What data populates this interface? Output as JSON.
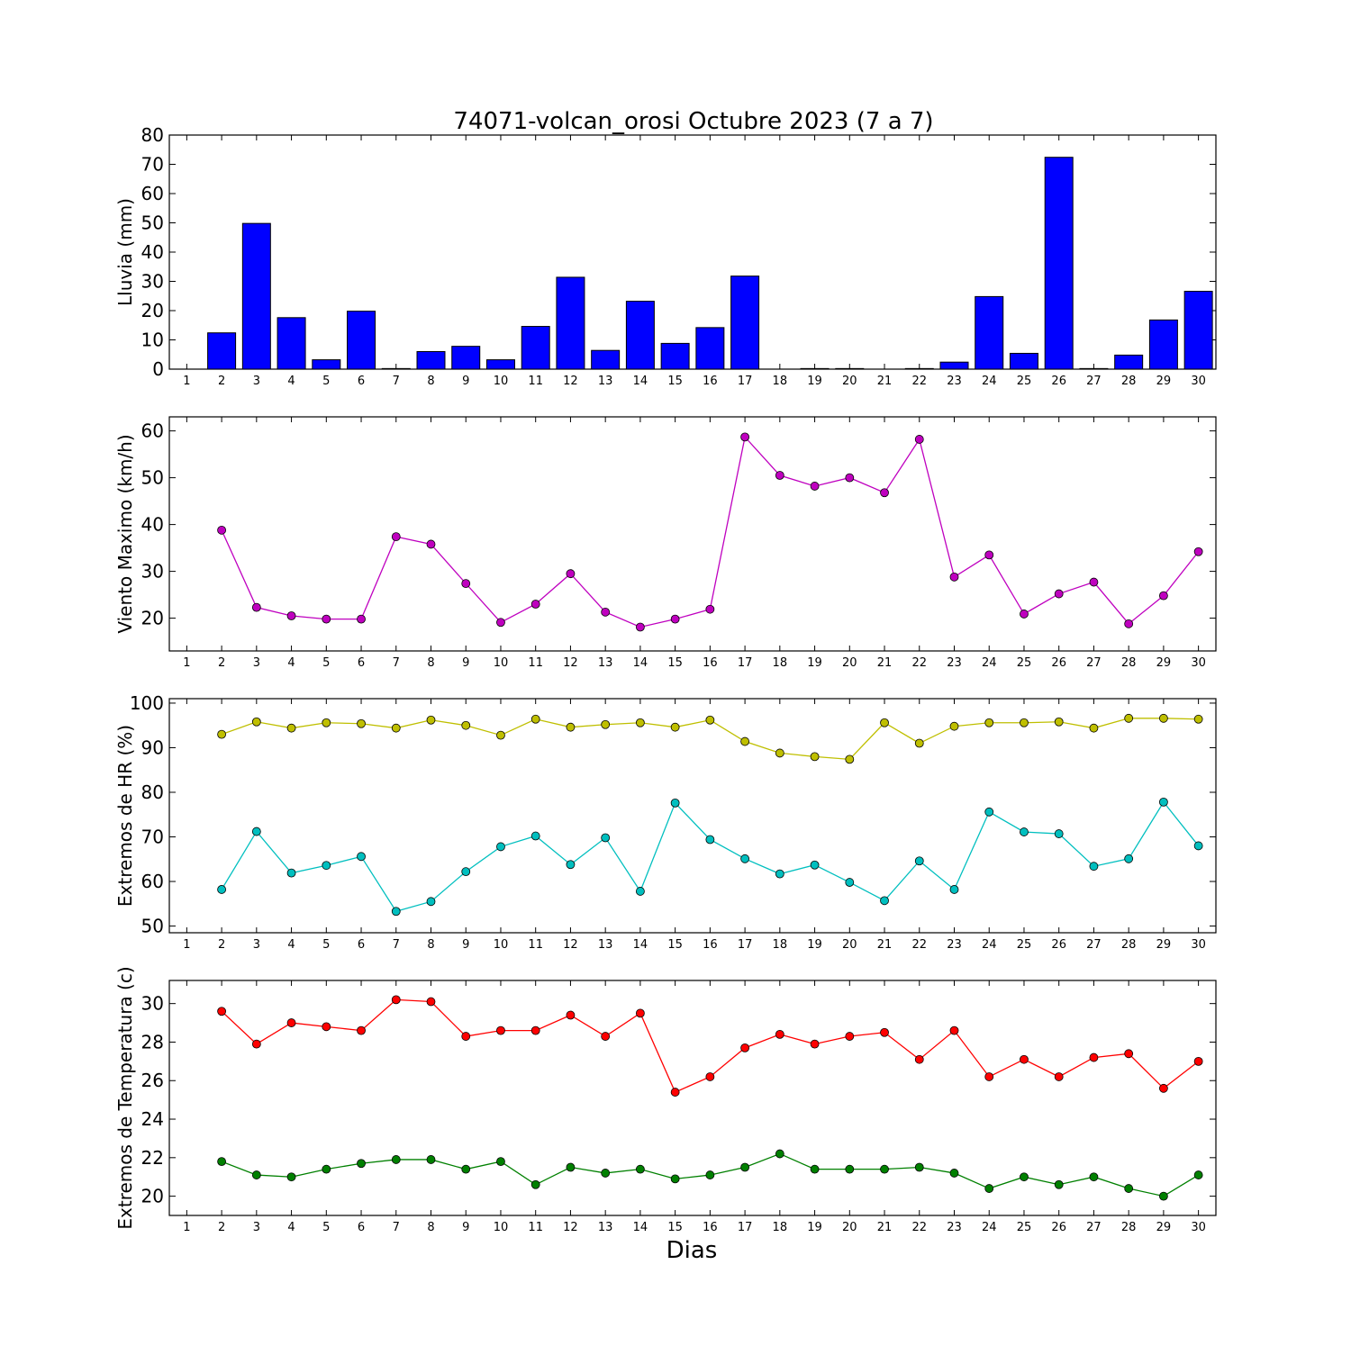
{
  "title": "74071-volcan_orosi Octubre 2023  (7 a 7)",
  "xlabel": "Dias",
  "chart_data": [
    {
      "type": "bar",
      "ylabel": "Lluvia (mm)",
      "ylim": [
        0,
        80
      ],
      "yticks": [
        0,
        10,
        20,
        30,
        40,
        50,
        60,
        70,
        80
      ],
      "x": [
        1,
        2,
        3,
        4,
        5,
        6,
        7,
        8,
        9,
        10,
        11,
        12,
        13,
        14,
        15,
        16,
        17,
        18,
        19,
        20,
        21,
        22,
        23,
        24,
        25,
        26,
        27,
        28,
        29,
        30
      ],
      "series": [
        {
          "color": "#0000ff",
          "values": [
            0,
            12.4,
            49.8,
            17.6,
            3.2,
            19.8,
            0.2,
            6.0,
            7.8,
            3.2,
            14.6,
            31.4,
            6.4,
            23.2,
            8.8,
            14.2,
            31.8,
            0,
            0.2,
            0.2,
            0,
            0.2,
            2.4,
            24.8,
            5.4,
            72.4,
            0.2,
            4.8,
            16.8,
            26.6
          ]
        }
      ]
    },
    {
      "type": "line",
      "ylabel": "Viento Maximo (km/h)",
      "ylim": [
        13,
        63
      ],
      "yticks": [
        20,
        30,
        40,
        50,
        60
      ],
      "x": [
        2,
        3,
        4,
        5,
        6,
        7,
        8,
        9,
        10,
        11,
        12,
        13,
        14,
        15,
        16,
        17,
        18,
        19,
        20,
        21,
        22,
        23,
        24,
        25,
        26,
        27,
        28,
        29,
        30
      ],
      "series": [
        {
          "color": "#bf00bf",
          "values": [
            38.8,
            22.3,
            20.5,
            19.8,
            19.8,
            37.4,
            35.8,
            27.4,
            19.1,
            23.0,
            29.5,
            21.3,
            18.1,
            19.8,
            21.9,
            58.7,
            50.5,
            48.2,
            50.0,
            46.8,
            58.2,
            28.8,
            33.5,
            20.9,
            25.2,
            27.7,
            18.8,
            24.8,
            34.2
          ]
        }
      ]
    },
    {
      "type": "line",
      "ylabel": "Extremos de HR (%)",
      "ylim": [
        48.5,
        101
      ],
      "yticks": [
        50,
        60,
        70,
        80,
        90,
        100
      ],
      "x": [
        2,
        3,
        4,
        5,
        6,
        7,
        8,
        9,
        10,
        11,
        12,
        13,
        14,
        15,
        16,
        17,
        18,
        19,
        20,
        21,
        22,
        23,
        24,
        25,
        26,
        27,
        28,
        29,
        30
      ],
      "series": [
        {
          "color": "#bfbf00",
          "values": [
            93.0,
            95.8,
            94.4,
            95.6,
            95.4,
            94.4,
            96.2,
            95.0,
            92.8,
            96.4,
            94.6,
            95.2,
            95.6,
            94.6,
            96.2,
            91.4,
            88.8,
            88.0,
            87.4,
            95.6,
            91.0,
            94.8,
            95.6,
            95.6,
            95.8,
            94.4,
            96.6,
            96.6,
            96.4
          ]
        },
        {
          "color": "#00bfbf",
          "values": [
            58.2,
            71.2,
            61.9,
            63.6,
            65.6,
            53.3,
            55.5,
            62.2,
            67.8,
            70.2,
            63.8,
            69.8,
            57.8,
            77.6,
            69.4,
            65.1,
            61.7,
            63.7,
            59.8,
            55.7,
            64.6,
            58.2,
            75.6,
            71.1,
            70.7,
            63.4,
            65.1,
            77.8,
            68.0
          ]
        }
      ]
    },
    {
      "type": "line",
      "ylabel": "Extremos de Temperatura (c)",
      "ylim": [
        19,
        31.2
      ],
      "yticks": [
        20,
        22,
        24,
        26,
        28,
        30
      ],
      "x": [
        2,
        3,
        4,
        5,
        6,
        7,
        8,
        9,
        10,
        11,
        12,
        13,
        14,
        15,
        16,
        17,
        18,
        19,
        20,
        21,
        22,
        23,
        24,
        25,
        26,
        27,
        28,
        29,
        30
      ],
      "series": [
        {
          "color": "#ff0000",
          "values": [
            29.6,
            27.9,
            29.0,
            28.8,
            28.6,
            30.2,
            30.1,
            28.3,
            28.6,
            28.6,
            29.4,
            28.3,
            29.5,
            25.4,
            26.2,
            27.7,
            28.4,
            27.9,
            28.3,
            28.5,
            27.1,
            28.6,
            26.2,
            27.1,
            26.2,
            27.2,
            27.4,
            25.6,
            27.0
          ]
        },
        {
          "color": "#008000",
          "values": [
            21.8,
            21.1,
            21.0,
            21.4,
            21.7,
            21.9,
            21.9,
            21.4,
            21.8,
            20.6,
            21.5,
            21.2,
            21.4,
            20.9,
            21.1,
            21.5,
            22.2,
            21.4,
            21.4,
            21.4,
            21.5,
            21.2,
            20.4,
            21.0,
            20.6,
            21.0,
            20.4,
            20.0,
            21.1
          ]
        }
      ]
    }
  ],
  "xticks": [
    1,
    2,
    3,
    4,
    5,
    6,
    7,
    8,
    9,
    10,
    11,
    12,
    13,
    14,
    15,
    16,
    17,
    18,
    19,
    20,
    21,
    22,
    23,
    24,
    25,
    26,
    27,
    28,
    29,
    30
  ]
}
